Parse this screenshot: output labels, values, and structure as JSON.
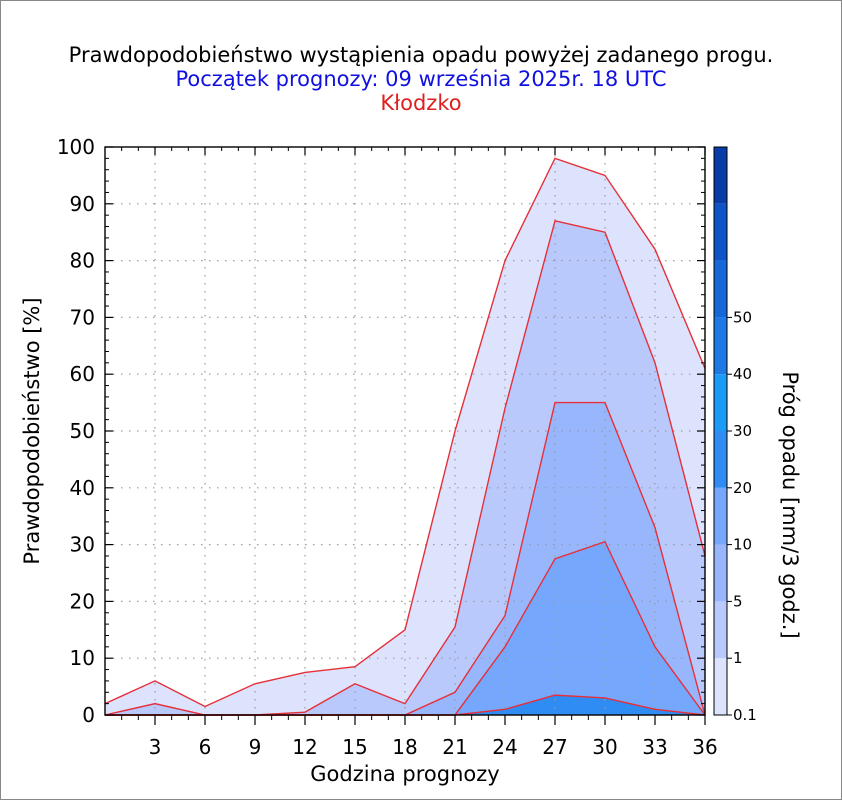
{
  "header": {
    "title": "Prawdopodobieństwo wystąpienia opadu powyżej zadanego progu.",
    "subtitle": "Początek prognozy: 09 września 2025r. 18 UTC",
    "location": "Kłodzko"
  },
  "chart_data": {
    "type": "area",
    "xlabel": "Godzina prognozy",
    "ylabel": "Prawdopodobieństwo [%]",
    "x": [
      0,
      3,
      6,
      9,
      12,
      15,
      18,
      21,
      24,
      27,
      30,
      33,
      36
    ],
    "xticks": [
      "3",
      "6",
      "9",
      "12",
      "15",
      "18",
      "21",
      "24",
      "27",
      "30",
      "33",
      "36"
    ],
    "xlim": [
      0,
      36
    ],
    "ylim": [
      0,
      100
    ],
    "yticks": [
      "0",
      "10",
      "20",
      "30",
      "40",
      "50",
      "60",
      "70",
      "80",
      "90",
      "100"
    ],
    "grid": true,
    "series": [
      {
        "name": "0.1",
        "color": "#dde3fd",
        "values": [
          2,
          6,
          1.5,
          5.5,
          7.5,
          8.5,
          15,
          50,
          80,
          98,
          95,
          82,
          61
        ]
      },
      {
        "name": "1",
        "color": "#b9c9fc",
        "values": [
          0,
          2,
          0,
          0,
          0.5,
          5.5,
          2,
          15.5,
          54,
          87,
          85,
          62,
          28
        ]
      },
      {
        "name": "5",
        "color": "#98b6fc",
        "values": [
          0,
          0,
          0,
          0,
          0,
          0,
          0,
          4,
          17.5,
          55,
          55,
          33,
          0
        ]
      },
      {
        "name": "10",
        "color": "#75a7fd",
        "values": [
          0,
          0,
          0,
          0,
          0,
          0,
          0,
          0,
          12,
          27.5,
          30.5,
          12,
          0
        ]
      },
      {
        "name": "20",
        "color": "#2f8cf3",
        "values": [
          0,
          0,
          0,
          0,
          0,
          0,
          0,
          0,
          1,
          3.5,
          3,
          1,
          0
        ]
      }
    ],
    "colorbar": {
      "label": "Próg opadu [mm/3 godz.]",
      "labels": [
        "0.1",
        "1",
        "5",
        "10",
        "20",
        "30",
        "40",
        "50"
      ],
      "colors": [
        "#dde3fd",
        "#b9c9fc",
        "#98b6fc",
        "#75a7fd",
        "#2f8cf3",
        "#1c9af7",
        "#1d7ae4",
        "#1668d7",
        "#0d55c6",
        "#083da9"
      ]
    }
  }
}
